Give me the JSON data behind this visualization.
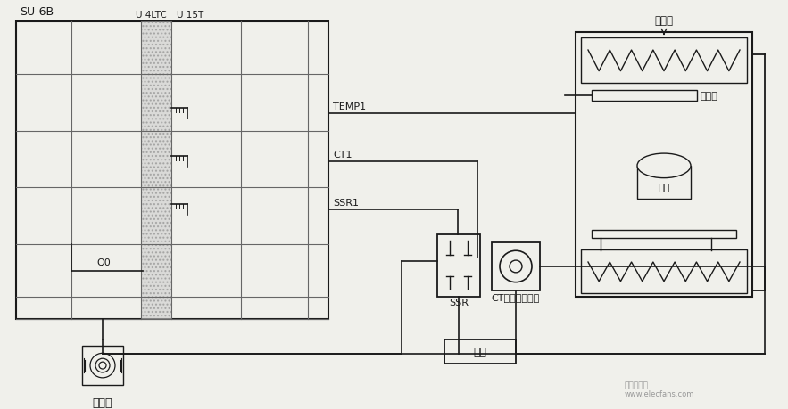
{
  "bg_color": "#f0f0eb",
  "line_color": "#1a1a1a",
  "title_su6b": "SU-6B",
  "label_u41tc": "U 4LTC",
  "label_u15t": "U 15T",
  "label_temp1": "TEMP1",
  "label_ct1": "CT1",
  "label_ssr1": "SSR1",
  "label_q0": "Q0",
  "label_heater": "加热器",
  "label_thermocouple": "热电对",
  "label_bread": "面包",
  "label_buzzer": "蜂鸣器",
  "label_ssr": "SSR",
  "label_ct": "CT：电流检知器",
  "label_power": "电源",
  "watermark": "电子发发网",
  "watermark2": "www.elecfans.com"
}
